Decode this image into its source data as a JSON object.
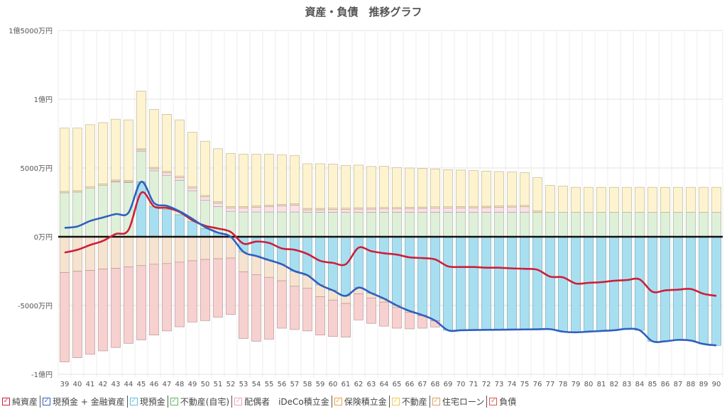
{
  "chart_data": {
    "type": "bar",
    "title": "資産・負債　推移グラフ",
    "x": [
      39,
      40,
      41,
      42,
      43,
      44,
      45,
      46,
      47,
      48,
      49,
      50,
      51,
      52,
      53,
      54,
      55,
      56,
      57,
      58,
      59,
      60,
      61,
      62,
      63,
      64,
      65,
      66,
      67,
      68,
      69,
      70,
      71,
      72,
      73,
      74,
      75,
      76,
      77,
      78,
      79,
      80,
      81,
      82,
      83,
      84,
      85,
      86,
      87,
      88,
      89,
      90
    ],
    "x_tick_labels": [
      "39",
      "40",
      "41",
      "42",
      "43",
      "44",
      "45",
      "46",
      "47",
      "48",
      "49",
      "50",
      "51",
      "52",
      "53",
      "54",
      "55",
      "56",
      "57",
      "58",
      "59",
      "60",
      "61",
      "62",
      "63",
      "64",
      "65",
      "66",
      "67",
      "68",
      "69",
      "70",
      "71",
      "72",
      "73",
      "74",
      "75",
      "76",
      "77",
      "78",
      "79",
      "80",
      "81",
      "82",
      "83",
      "84",
      "85",
      "86",
      "87",
      "88",
      "89",
      "90"
    ],
    "y_ticks": [
      -10000,
      -5000,
      0,
      5000,
      10000,
      15000
    ],
    "y_tick_labels": [
      "-1億円",
      "-5000万円",
      "0万円",
      "5000万円",
      "1億円",
      "1億5000万円"
    ],
    "ylim": [
      -10000,
      15000
    ],
    "unit": "万円",
    "grid": true,
    "legend_position": "bottom",
    "legend": [
      {
        "label": "純資産",
        "color": "#cc1f3a"
      },
      {
        "label": "現預金 + 金融資産",
        "color": "#2f5fbf"
      },
      {
        "label": "現預金",
        "color": "#5bc0de"
      },
      {
        "label": "不動産(自宅)",
        "color": "#5cb85c"
      },
      {
        "label": "配偶者　iDeCo積立金",
        "color": "#f0a0b8"
      },
      {
        "label": "保険積立金",
        "color": "#f0a040"
      },
      {
        "label": "不動産",
        "color": "#f0c850"
      },
      {
        "label": "住宅ローン",
        "color": "#d9a060"
      },
      {
        "label": "負債",
        "color": "#d9534f"
      }
    ],
    "stacked_positive": [
      {
        "name": "現預金",
        "color": "#a8dff0",
        "values": [
          0,
          0,
          0,
          0,
          0,
          0,
          4000,
          2200,
          2000,
          1600,
          1100,
          600,
          300,
          0,
          0,
          0,
          0,
          0,
          0,
          0,
          0,
          0,
          0,
          0,
          0,
          0,
          0,
          0,
          0,
          0,
          0,
          0,
          0,
          0,
          0,
          0,
          0,
          0,
          0,
          0,
          0,
          0,
          0,
          0,
          0,
          0,
          0,
          0,
          0,
          0,
          0,
          0
        ]
      },
      {
        "name": "不動産(自宅)",
        "color": "#dff0d8",
        "values": [
          3200,
          3250,
          3550,
          3750,
          3980,
          3950,
          2200,
          2600,
          2450,
          2500,
          2250,
          2050,
          1900,
          1850,
          1800,
          1800,
          1800,
          1800,
          1800,
          1780,
          1780,
          1780,
          1780,
          1780,
          1780,
          1780,
          1780,
          1780,
          1780,
          1780,
          1780,
          1780,
          1780,
          1780,
          1780,
          1780,
          1780,
          1780,
          1780,
          1780,
          1780,
          1780,
          1780,
          1780,
          1780,
          1780,
          1780,
          1780,
          1780,
          1780,
          1780,
          1780
        ]
      },
      {
        "name": "配偶者　iDeCo積立金",
        "color": "#fbe0e8",
        "values": [
          0,
          0,
          0,
          0,
          50,
          50,
          100,
          150,
          200,
          200,
          200,
          250,
          250,
          250,
          300,
          350,
          400,
          450,
          500,
          180,
          180,
          200,
          200,
          230,
          230,
          250,
          250,
          270,
          280,
          300,
          300,
          320,
          330,
          340,
          360,
          380,
          400,
          0,
          0,
          0,
          0,
          0,
          0,
          0,
          0,
          0,
          0,
          0,
          0,
          0,
          0,
          0
        ]
      },
      {
        "name": "保険積立金",
        "color": "#fce4c4",
        "values": [
          100,
          100,
          100,
          100,
          100,
          100,
          100,
          100,
          100,
          100,
          100,
          100,
          100,
          100,
          100,
          100,
          100,
          100,
          100,
          100,
          100,
          100,
          100,
          100,
          100,
          100,
          100,
          100,
          100,
          100,
          100,
          100,
          100,
          100,
          100,
          100,
          100,
          100,
          0,
          0,
          0,
          0,
          0,
          0,
          0,
          0,
          0,
          0,
          0,
          0,
          0,
          0
        ]
      },
      {
        "name": "不動産",
        "color": "#fdf3cf",
        "values": [
          4600,
          4550,
          4500,
          4450,
          4420,
          4400,
          4200,
          4200,
          4150,
          4100,
          3950,
          3950,
          3850,
          3850,
          3800,
          3750,
          3700,
          3600,
          3500,
          3250,
          3250,
          3200,
          3100,
          3100,
          3000,
          3000,
          2900,
          2850,
          2800,
          2750,
          2700,
          2650,
          2600,
          2550,
          2500,
          2450,
          2380,
          2420,
          1950,
          1900,
          1820,
          1820,
          1820,
          1820,
          1820,
          1820,
          1820,
          1820,
          1820,
          1820,
          1820,
          1820
        ]
      }
    ],
    "stacked_negative": [
      {
        "name": "現預金",
        "color": "#a8dff0",
        "values": [
          0,
          0,
          0,
          0,
          0,
          0,
          0,
          0,
          0,
          0,
          0,
          0,
          0,
          0,
          -1100,
          -1400,
          -1700,
          -2000,
          -2500,
          -2800,
          -3500,
          -3900,
          -4300,
          -3700,
          -4100,
          -4500,
          -5000,
          -5400,
          -5700,
          -6100,
          -6800,
          -6800,
          -6780,
          -6770,
          -6760,
          -6750,
          -6740,
          -6730,
          -6720,
          -6900,
          -6950,
          -6900,
          -6850,
          -6800,
          -6700,
          -6800,
          -7600,
          -7600,
          -7500,
          -7550,
          -7800,
          -7900
        ]
      },
      {
        "name": "住宅ローン",
        "color": "#f6e3cf",
        "values": [
          -2600,
          -2500,
          -2450,
          -2350,
          -2300,
          -2200,
          -2100,
          -2000,
          -1950,
          -1850,
          -1750,
          -1650,
          -1600,
          -1550,
          -1450,
          -1350,
          -1250,
          -1200,
          -1100,
          -950,
          -850,
          -700,
          -550,
          -450,
          -350,
          -250,
          -150,
          -100,
          -50,
          -10,
          0,
          0,
          0,
          0,
          0,
          0,
          0,
          0,
          0,
          0,
          0,
          0,
          0,
          0,
          0,
          0,
          0,
          0,
          0,
          0,
          0,
          0
        ]
      },
      {
        "name": "負債",
        "color": "#f7d0d0",
        "values": [
          -6500,
          -6300,
          -6100,
          -5950,
          -5750,
          -5550,
          -5400,
          -5150,
          -4900,
          -4700,
          -4450,
          -4450,
          -4250,
          -4100,
          -4850,
          -4850,
          -4500,
          -3450,
          -3150,
          -3100,
          -2800,
          -2650,
          -2450,
          -1900,
          -1850,
          -1750,
          -1500,
          -1200,
          -900,
          -450,
          0,
          0,
          0,
          0,
          0,
          0,
          0,
          0,
          0,
          0,
          0,
          0,
          0,
          0,
          0,
          0,
          0,
          0,
          0,
          0,
          0,
          0
        ]
      }
    ],
    "series": [
      {
        "name": "純資産",
        "color": "#cc1f3a",
        "values": [
          -1150,
          -950,
          -600,
          -300,
          200,
          500,
          3200,
          2200,
          2100,
          1800,
          1200,
          800,
          600,
          350,
          -500,
          -350,
          -450,
          -850,
          -950,
          -1250,
          -1750,
          -1900,
          -2000,
          -800,
          -1050,
          -1200,
          -1300,
          -1500,
          -1550,
          -1650,
          -2150,
          -2200,
          -2200,
          -2250,
          -2250,
          -2300,
          -2330,
          -2400,
          -2900,
          -2950,
          -3400,
          -3350,
          -3300,
          -3200,
          -3150,
          -3100,
          -4000,
          -3900,
          -3850,
          -3800,
          -4150,
          -4300
        ]
      },
      {
        "name": "現預金 + 金融資産",
        "color": "#2f5fbf",
        "values": [
          650,
          750,
          1150,
          1400,
          1650,
          1750,
          4000,
          2450,
          2250,
          1850,
          1300,
          700,
          300,
          0,
          -1100,
          -1400,
          -1700,
          -2000,
          -2500,
          -2800,
          -3500,
          -3900,
          -4300,
          -3700,
          -4100,
          -4500,
          -5000,
          -5400,
          -5700,
          -6100,
          -6800,
          -6800,
          -6780,
          -6770,
          -6760,
          -6750,
          -6740,
          -6730,
          -6720,
          -6900,
          -6950,
          -6900,
          -6850,
          -6800,
          -6700,
          -6800,
          -7600,
          -7600,
          -7500,
          -7550,
          -7800,
          -7900
        ]
      }
    ]
  }
}
